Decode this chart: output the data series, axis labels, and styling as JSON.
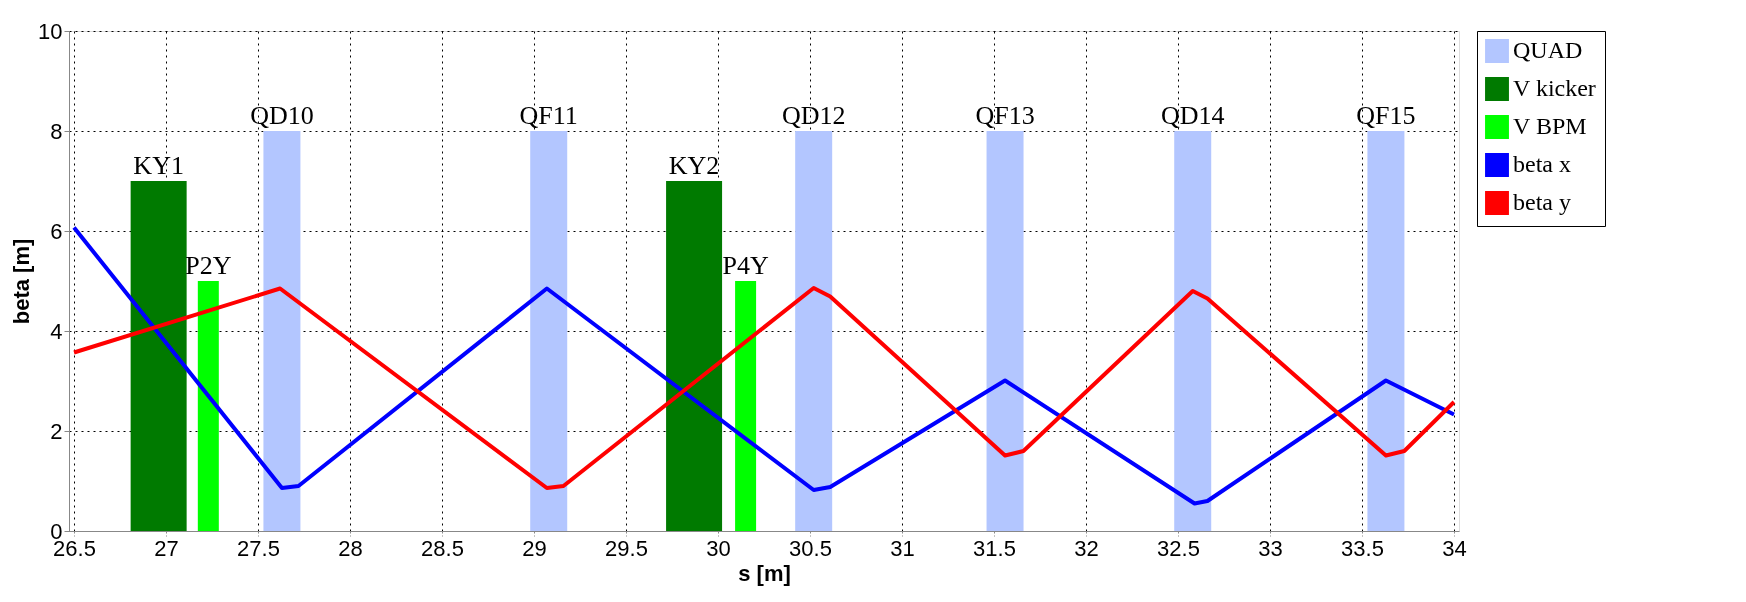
{
  "chart_data": {
    "type": "bar",
    "xlabel": "s [m]",
    "ylabel": "beta [m]",
    "xlim": [
      26.5,
      34
    ],
    "xticks": [
      26.5,
      27,
      27.5,
      28,
      28.5,
      29,
      29.5,
      30,
      30.5,
      31,
      31.5,
      32,
      32.5,
      33,
      33.5,
      34
    ],
    "ylim": [
      0,
      10
    ],
    "yticks": [
      0,
      2,
      4,
      6,
      8,
      10
    ],
    "grid": true,
    "legend": "top right",
    "series": [
      {
        "name": "QUAD",
        "color": "#b3c6ff",
        "x": [
          27.63,
          29.08,
          30.52,
          31.56,
          32.58,
          33.63
        ],
        "values": [
          8,
          8,
          8,
          8,
          8,
          8
        ]
      },
      {
        "name": "V kicker",
        "color": "#007a00",
        "x": [
          26.96,
          29.87
        ],
        "values": [
          7,
          7
        ]
      },
      {
        "name": "V BPM",
        "color": "#00ff00",
        "x": [
          27.23,
          30.15
        ],
        "values": [
          5,
          5
        ]
      },
      {
        "name": "beta x",
        "type": "line",
        "color": "#0000ff",
        "marker": "none",
        "line_style": "solid",
        "x": [
          26.5,
          27.63,
          27.72,
          29.07,
          30.52,
          30.61,
          31.56,
          32.59,
          32.66,
          33.63,
          34.0
        ],
        "values": [
          6.07,
          0.86,
          0.9,
          4.85,
          0.82,
          0.88,
          3.01,
          0.55,
          0.6,
          3.01,
          2.33
        ]
      },
      {
        "name": "beta y",
        "type": "line",
        "color": "#ff0000",
        "marker": "none",
        "line_style": "solid",
        "x": [
          26.5,
          27.62,
          29.07,
          29.16,
          30.52,
          30.61,
          31.56,
          31.66,
          32.58,
          32.66,
          33.63,
          33.73,
          34.0
        ],
        "values": [
          3.57,
          4.85,
          0.86,
          0.9,
          4.86,
          4.69,
          1.51,
          1.6,
          4.8,
          4.65,
          1.51,
          1.6,
          2.58
        ]
      }
    ],
    "annotations": [
      {
        "text": "KY1",
        "x": 26.96,
        "y": 7
      },
      {
        "text": "P2Y",
        "x": 27.23,
        "y": 5
      },
      {
        "text": "QD10",
        "x": 27.63,
        "y": 8
      },
      {
        "text": "QF11",
        "x": 29.08,
        "y": 8
      },
      {
        "text": "KY2",
        "x": 29.87,
        "y": 7
      },
      {
        "text": "P4Y",
        "x": 30.15,
        "y": 5
      },
      {
        "text": "QD12",
        "x": 30.52,
        "y": 8
      },
      {
        "text": "QF13",
        "x": 31.56,
        "y": 8
      },
      {
        "text": "QD14",
        "x": 32.58,
        "y": 8
      },
      {
        "text": "QF15",
        "x": 33.63,
        "y": 8
      }
    ]
  }
}
